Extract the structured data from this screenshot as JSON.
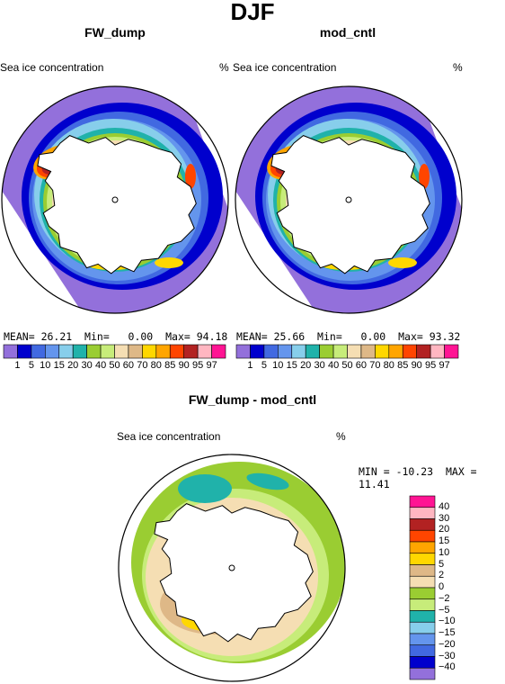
{
  "figure": {
    "title": "DJF",
    "variable_label": "Sea ice concentration",
    "units": "%",
    "colors": {
      "land": "#ffffff",
      "outline": "#000000"
    }
  },
  "chart_data": [
    {
      "type": "heatmap",
      "title": "FW_dump",
      "projection": "south-polar-stereographic",
      "label_left": "Sea ice concentration",
      "label_right": "%",
      "stats": {
        "mean_label": "MEAN=",
        "mean": "26.21",
        "min_label": "Min=",
        "min": "0.00",
        "max_label": "Max=",
        "max": "94.18"
      },
      "levels": [
        "1",
        "5",
        "10",
        "15",
        "20",
        "30",
        "40",
        "50",
        "60",
        "70",
        "80",
        "85",
        "90",
        "95",
        "97"
      ],
      "colors": [
        "#9370db",
        "#0000cd",
        "#4169e1",
        "#6495ed",
        "#87ceeb",
        "#20b2aa",
        "#9acd32",
        "#c7ec7a",
        "#f5deb3",
        "#deb887",
        "#ffd700",
        "#ffa500",
        "#ff4500",
        "#b22222",
        "#ffb6c1",
        "#ff1493"
      ],
      "legend_position": "bottom"
    },
    {
      "type": "heatmap",
      "title": "mod_cntl",
      "projection": "south-polar-stereographic",
      "label_left": "Sea ice concentration",
      "label_right": "%",
      "stats": {
        "mean_label": "MEAN=",
        "mean": "25.66",
        "min_label": "Min=",
        "min": "0.00",
        "max_label": "Max=",
        "max": "93.32"
      },
      "levels": [
        "1",
        "5",
        "10",
        "15",
        "20",
        "30",
        "40",
        "50",
        "60",
        "70",
        "80",
        "85",
        "90",
        "95",
        "97"
      ],
      "colors": [
        "#9370db",
        "#0000cd",
        "#4169e1",
        "#6495ed",
        "#87ceeb",
        "#20b2aa",
        "#9acd32",
        "#c7ec7a",
        "#f5deb3",
        "#deb887",
        "#ffd700",
        "#ffa500",
        "#ff4500",
        "#b22222",
        "#ffb6c1",
        "#ff1493"
      ],
      "legend_position": "bottom"
    },
    {
      "type": "heatmap",
      "title": "FW_dump - mod_cntl",
      "projection": "south-polar-stereographic",
      "label_left": "Sea ice concentration",
      "label_right": "%",
      "stats": {
        "min_label": "MIN =",
        "min": "-10.23",
        "max_label": "MAX =",
        "max": "11.41"
      },
      "levels": [
        "40",
        "30",
        "20",
        "15",
        "10",
        "5",
        "2",
        "0",
        "−2",
        "−5",
        "−10",
        "−15",
        "−20",
        "−30",
        "−40"
      ],
      "colors": [
        "#ff1493",
        "#ffb6c1",
        "#b22222",
        "#ff4500",
        "#ffa500",
        "#ffd700",
        "#deb887",
        "#f5deb3",
        "#9acd32",
        "#c7ec7a",
        "#20b2aa",
        "#87ceeb",
        "#6495ed",
        "#4169e1",
        "#0000cd",
        "#9370db"
      ],
      "legend_position": "right"
    }
  ]
}
